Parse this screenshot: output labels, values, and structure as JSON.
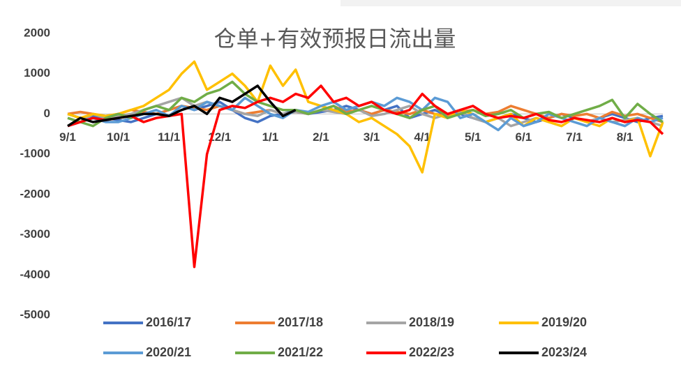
{
  "chart_data": {
    "type": "line",
    "title": "仓单+有效预报日流出量",
    "categories": [
      "9/1",
      null,
      null,
      null,
      "10/1",
      null,
      null,
      null,
      "11/1",
      null,
      null,
      null,
      "12/1",
      null,
      null,
      null,
      "1/1",
      null,
      null,
      null,
      "2/1",
      null,
      null,
      null,
      "3/1",
      null,
      null,
      null,
      "4/1",
      null,
      null,
      null,
      "5/1",
      null,
      null,
      null,
      "6/1",
      null,
      null,
      null,
      "7/1",
      null,
      null,
      null,
      "8/1",
      null,
      null,
      null
    ],
    "ylim": [
      -5000,
      2000
    ],
    "yticks": [
      -5000,
      -4000,
      -3000,
      -2000,
      -1000,
      0,
      1000,
      2000
    ],
    "grid": false,
    "legend": "bottom",
    "series": [
      {
        "name": "2016/17",
        "color": "#4472c4",
        "values": [
          0,
          -100,
          -50,
          -100,
          -150,
          -200,
          -100,
          0,
          100,
          200,
          100,
          200,
          300,
          100,
          -100,
          -200,
          -50,
          0,
          100,
          0,
          50,
          100,
          200,
          100,
          0,
          100,
          200,
          -100,
          0,
          100,
          -50,
          0,
          -100,
          -200,
          -100,
          0,
          -100,
          -200,
          -100,
          0,
          -100,
          -200,
          -100,
          0,
          -100,
          -200,
          -100,
          -50
        ]
      },
      {
        "name": "2017/18",
        "color": "#ed7d31",
        "values": [
          0,
          50,
          0,
          -50,
          0,
          100,
          50,
          0,
          100,
          200,
          150,
          100,
          200,
          100,
          0,
          50,
          100,
          0,
          50,
          0,
          100,
          200,
          50,
          100,
          0,
          100,
          50,
          0,
          100,
          0,
          -50,
          50,
          100,
          0,
          50,
          200,
          100,
          0,
          -100,
          0,
          -50,
          0,
          -100,
          50,
          -50,
          0,
          -100,
          -200
        ]
      },
      {
        "name": "2018/19",
        "color": "#a5a5a5",
        "values": [
          -100,
          -200,
          0,
          -100,
          -50,
          0,
          100,
          200,
          300,
          400,
          200,
          300,
          200,
          100,
          0,
          -50,
          100,
          0,
          50,
          0,
          100,
          50,
          0,
          100,
          -50,
          0,
          100,
          200,
          0,
          -100,
          0,
          50,
          -100,
          -200,
          -100,
          -300,
          -200,
          -100,
          -200,
          -300,
          -100,
          -200,
          -100,
          -200,
          -150,
          -100,
          -200,
          -300
        ]
      },
      {
        "name": "2019/20",
        "color": "#ffc000",
        "values": [
          0,
          -100,
          0,
          -50,
          0,
          100,
          200,
          400,
          600,
          1000,
          1300,
          600,
          800,
          1000,
          700,
          300,
          1200,
          700,
          1100,
          300,
          200,
          100,
          0,
          -200,
          -100,
          -300,
          -500,
          -800,
          -1450,
          0,
          -100,
          100,
          0,
          -200,
          -100,
          0,
          -300,
          -100,
          -200,
          -300,
          -100,
          -200,
          -300,
          -100,
          -200,
          -100,
          -1050,
          -200
        ]
      },
      {
        "name": "2020/21",
        "color": "#5b9bd5",
        "values": [
          -300,
          -200,
          -100,
          -200,
          -200,
          -100,
          0,
          100,
          -50,
          200,
          100,
          300,
          200,
          100,
          400,
          200,
          0,
          -100,
          100,
          50,
          200,
          300,
          100,
          200,
          300,
          200,
          400,
          300,
          100,
          400,
          300,
          -100,
          0,
          -200,
          -400,
          -100,
          -300,
          -200,
          0,
          -100,
          -200,
          -300,
          -100,
          -200,
          -300,
          -100,
          -200,
          -100
        ]
      },
      {
        "name": "2021/22",
        "color": "#70ad47",
        "values": [
          -100,
          -200,
          -300,
          -100,
          0,
          -100,
          100,
          200,
          100,
          400,
          300,
          500,
          600,
          800,
          500,
          300,
          200,
          100,
          100,
          0,
          100,
          200,
          0,
          100,
          200,
          100,
          0,
          -100,
          100,
          200,
          -100,
          0,
          100,
          -50,
          0,
          100,
          -100,
          0,
          50,
          -100,
          0,
          100,
          200,
          350,
          -100,
          250,
          0,
          -200
        ]
      },
      {
        "name": "2022/23",
        "color": "#ff0000",
        "values": [
          -300,
          -200,
          -100,
          -150,
          -100,
          -50,
          -200,
          -100,
          -50,
          0,
          -3800,
          -1000,
          100,
          200,
          150,
          300,
          400,
          300,
          500,
          400,
          700,
          300,
          400,
          200,
          300,
          100,
          0,
          100,
          500,
          200,
          0,
          100,
          200,
          0,
          -100,
          -50,
          -100,
          0,
          -150,
          -200,
          -100,
          -150,
          -200,
          -100,
          -200,
          -150,
          -200,
          -500
        ]
      },
      {
        "name": "2023/24",
        "color": "#000000",
        "values": [
          -300,
          -100,
          -200,
          -150,
          -100,
          -50,
          0,
          0,
          -50,
          100,
          200,
          0,
          400,
          300,
          500,
          700,
          300,
          -50,
          100,
          null,
          null,
          null,
          null,
          null,
          null,
          null,
          null,
          null,
          null,
          null,
          null,
          null,
          null,
          null,
          null,
          null,
          null,
          null,
          null,
          null,
          null,
          null,
          null,
          null,
          null,
          null,
          null,
          null
        ]
      }
    ]
  }
}
